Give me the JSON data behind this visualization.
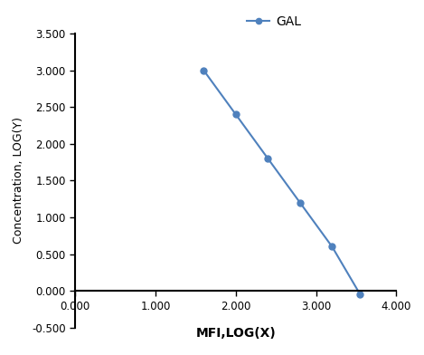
{
  "x": [
    1.6,
    2.0,
    2.4,
    2.8,
    3.2,
    3.55
  ],
  "y": [
    3.0,
    2.4,
    1.8,
    1.2,
    0.6,
    -0.05
  ],
  "line_color": "#4f81bd",
  "marker": "o",
  "marker_size": 5,
  "legend_label": "GAL",
  "xlabel": "MFI,LOG(X)",
  "ylabel": "Concentration, LOG(Y)",
  "xlim": [
    0.0,
    4.0
  ],
  "ylim": [
    -0.5,
    3.5
  ],
  "xticks": [
    0.0,
    1.0,
    2.0,
    3.0,
    4.0
  ],
  "yticks": [
    -0.5,
    0.0,
    0.5,
    1.0,
    1.5,
    2.0,
    2.5,
    3.0,
    3.5
  ],
  "background_color": "#ffffff"
}
